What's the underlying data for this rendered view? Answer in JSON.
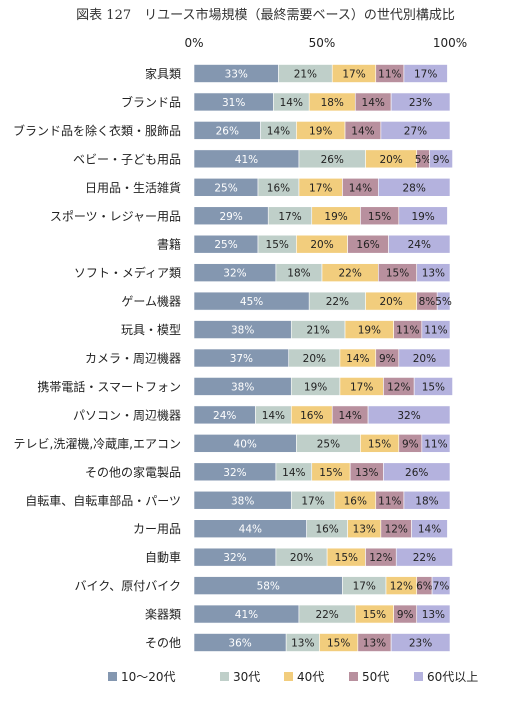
{
  "chart_data": {
    "type": "bar",
    "orientation": "horizontal",
    "stacked": true,
    "title": "図表 127　リユース市場規模（最終需要ベース）の世代別構成比",
    "xlabel": "",
    "ylabel": "",
    "xlim": [
      0,
      100
    ],
    "x_ticks": [
      "0%",
      "50%",
      "100%"
    ],
    "grid": false,
    "legend_position": "bottom",
    "categories": [
      "家具類",
      "ブランド品",
      "ブランド品を除く衣類・服飾品",
      "ベビー・子ども用品",
      "日用品・生活雑貨",
      "スポーツ・レジャー用品",
      "書籍",
      "ソフト・メディア類",
      "ゲーム機器",
      "玩具・模型",
      "カメラ・周辺機器",
      "携帯電話・スマートフォン",
      "パソコン・周辺機器",
      "テレビ,洗濯機,冷蔵庫,エアコン",
      "その他の家電製品",
      "自転車、自転車部品・パーツ",
      "カー用品",
      "自動車",
      "バイク、原付バイク",
      "楽器類",
      "その他"
    ],
    "series": [
      {
        "name": "10～20代",
        "color": "#8497b0",
        "values": [
          33,
          31,
          26,
          41,
          25,
          29,
          25,
          32,
          45,
          38,
          37,
          38,
          24,
          40,
          32,
          38,
          44,
          32,
          58,
          41,
          36
        ]
      },
      {
        "name": "30代",
        "color": "#bfcfc9",
        "values": [
          21,
          14,
          14,
          26,
          16,
          17,
          15,
          18,
          22,
          21,
          20,
          19,
          14,
          25,
          14,
          17,
          16,
          20,
          17,
          22,
          13
        ]
      },
      {
        "name": "40代",
        "color": "#f2cd7d",
        "values": [
          17,
          18,
          19,
          20,
          17,
          19,
          20,
          22,
          20,
          19,
          14,
          17,
          16,
          15,
          15,
          16,
          13,
          15,
          12,
          15,
          15
        ]
      },
      {
        "name": "50代",
        "color": "#b8909e",
        "values": [
          11,
          14,
          14,
          5,
          14,
          15,
          16,
          15,
          8,
          11,
          9,
          12,
          14,
          9,
          13,
          11,
          12,
          12,
          6,
          9,
          13
        ]
      },
      {
        "name": "60代以上",
        "color": "#b4b2de",
        "values": [
          17,
          23,
          27,
          9,
          28,
          19,
          24,
          13,
          5,
          11,
          20,
          15,
          32,
          11,
          26,
          18,
          14,
          22,
          7,
          13,
          23
        ]
      }
    ],
    "value_label_suffix": "%"
  }
}
